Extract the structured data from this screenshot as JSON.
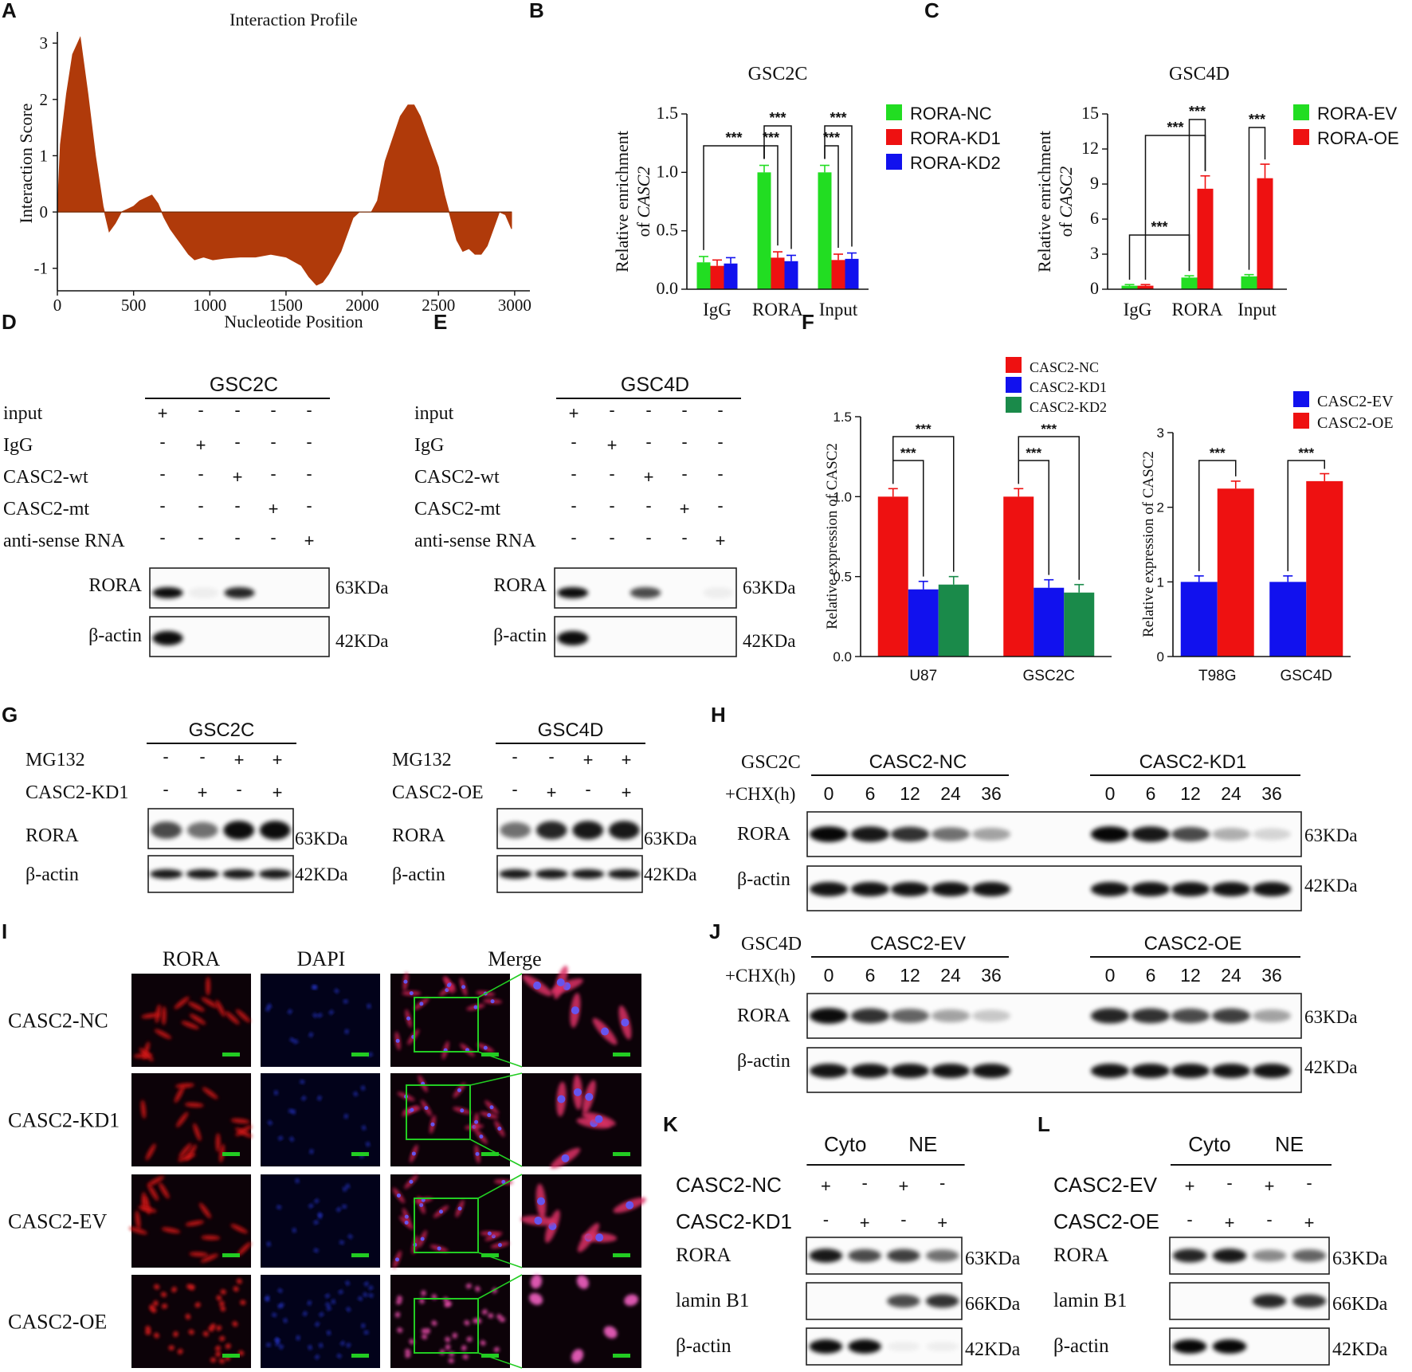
{
  "panel_letters": [
    "A",
    "B",
    "C",
    "D",
    "E",
    "F",
    "G",
    "H",
    "I",
    "J",
    "K",
    "L"
  ],
  "colors": {
    "profile_fill": "#b03a0a",
    "green": "#22dd22",
    "red": "#ee1111",
    "blue": "#1111ee",
    "darkgreen": "#1a8a4a",
    "roi_box": "#22cc22",
    "scale_bar": "#22cc22"
  },
  "panel_a": {
    "chart_data": {
      "type": "area",
      "title": "Interaction Profile",
      "xlabel": "Nucleotide Position",
      "ylabel": "Interaction Score",
      "xlim": [
        0,
        3100
      ],
      "ylim": [
        -1.4,
        3.2
      ],
      "xticks": [
        "0",
        "500",
        "1000",
        "1500",
        "2000",
        "2500",
        "3000"
      ],
      "yticks": [
        "-1",
        "0",
        "1",
        "2",
        "3"
      ],
      "x": [
        0,
        20,
        60,
        100,
        150,
        200,
        250,
        300,
        340,
        380,
        420,
        460,
        500,
        540,
        580,
        620,
        660,
        700,
        740,
        780,
        820,
        860,
        900,
        960,
        1020,
        1100,
        1200,
        1300,
        1400,
        1500,
        1600,
        1650,
        1700,
        1740,
        1780,
        1820,
        1860,
        1900,
        1940,
        1980,
        2020,
        2060,
        2100,
        2150,
        2200,
        2250,
        2300,
        2340,
        2380,
        2420,
        2460,
        2500,
        2540,
        2580,
        2620,
        2660,
        2700,
        2740,
        2780,
        2820,
        2860,
        2900,
        2940,
        2980
      ],
      "y": [
        0,
        1.2,
        2.1,
        2.8,
        3.1,
        2.1,
        1.0,
        0.1,
        -0.35,
        -0.2,
        0.0,
        0.05,
        0.1,
        0.2,
        0.25,
        0.3,
        0.15,
        -0.1,
        -0.3,
        -0.45,
        -0.6,
        -0.75,
        -0.85,
        -0.8,
        -0.85,
        -0.82,
        -0.8,
        -0.8,
        -0.75,
        -0.8,
        -0.95,
        -1.15,
        -1.3,
        -1.25,
        -1.1,
        -0.9,
        -0.7,
        -0.4,
        -0.1,
        0.0,
        0.0,
        0.0,
        0.2,
        0.9,
        1.3,
        1.7,
        1.9,
        1.9,
        1.7,
        1.4,
        1.1,
        0.8,
        0.3,
        -0.1,
        -0.5,
        -0.7,
        -0.65,
        -0.75,
        -0.75,
        -0.6,
        -0.3,
        0.0,
        -0.05,
        -0.3
      ]
    }
  },
  "panel_b": {
    "title": "GSC2C",
    "ylabel1": "Relative enrichment",
    "ylabel2": "of CASC2",
    "yticks": [
      "0.0",
      "0.5",
      "1.0",
      "1.5"
    ],
    "stars": "***",
    "chart_data": {
      "type": "bar",
      "title": "GSC2C",
      "categories": [
        "IgG",
        "RORA",
        "Input"
      ],
      "ylim": [
        0,
        1.5
      ],
      "series": [
        {
          "name": "RORA-NC",
          "color": "#22dd22",
          "values": [
            0.23,
            1.0,
            1.0
          ],
          "errors": [
            0.05,
            0.06,
            0.06
          ]
        },
        {
          "name": "RORA-KD1",
          "color": "#ee1111",
          "values": [
            0.2,
            0.27,
            0.25
          ],
          "errors": [
            0.05,
            0.05,
            0.05
          ]
        },
        {
          "name": "RORA-KD2",
          "color": "#1111ee",
          "values": [
            0.22,
            0.24,
            0.26
          ],
          "errors": [
            0.05,
            0.05,
            0.05
          ]
        }
      ]
    }
  },
  "panel_c": {
    "title": "GSC4D",
    "ylabel1": "Relative enrichment",
    "ylabel2": "of CASC2",
    "yticks": [
      "0",
      "3",
      "6",
      "9",
      "12",
      "15"
    ],
    "stars": "***",
    "chart_data": {
      "type": "bar",
      "title": "GSC4D",
      "categories": [
        "IgG",
        "RORA",
        "Input"
      ],
      "ylim": [
        0,
        15
      ],
      "series": [
        {
          "name": "RORA-EV",
          "color": "#22dd22",
          "values": [
            0.3,
            1.0,
            1.1
          ],
          "errors": [
            0.1,
            0.15,
            0.15
          ]
        },
        {
          "name": "RORA-OE",
          "color": "#ee1111",
          "values": [
            0.3,
            8.6,
            9.5
          ],
          "errors": [
            0.1,
            1.1,
            1.2
          ]
        }
      ]
    }
  },
  "panel_d": {
    "title": "GSC2C",
    "rows": [
      {
        "label": "input",
        "signs": [
          "+",
          "-",
          "-",
          "-",
          "-"
        ]
      },
      {
        "label": "IgG",
        "signs": [
          "-",
          "+",
          "-",
          "-",
          "-"
        ]
      },
      {
        "label": "CASC2-wt",
        "signs": [
          "-",
          "-",
          "+",
          "-",
          "-"
        ]
      },
      {
        "label": "CASC2-mt",
        "signs": [
          "-",
          "-",
          "-",
          "+",
          "-"
        ]
      },
      {
        "label": "anti-sense RNA",
        "signs": [
          "-",
          "-",
          "-",
          "-",
          "+"
        ]
      }
    ],
    "blots": [
      {
        "label": "RORA",
        "size": "63KDa"
      },
      {
        "label": "β-actin",
        "size": "42KDa"
      }
    ]
  },
  "panel_e": {
    "title": "GSC4D",
    "rows": [
      {
        "label": "input",
        "signs": [
          "+",
          "-",
          "-",
          "-",
          "-"
        ]
      },
      {
        "label": "IgG",
        "signs": [
          "-",
          "+",
          "-",
          "-",
          "-"
        ]
      },
      {
        "label": "CASC2-wt",
        "signs": [
          "-",
          "-",
          "+",
          "-",
          "-"
        ]
      },
      {
        "label": "CASC2-mt",
        "signs": [
          "-",
          "-",
          "-",
          "+",
          "-"
        ]
      },
      {
        "label": "anti-sense RNA",
        "signs": [
          "-",
          "-",
          "-",
          "-",
          "+"
        ]
      }
    ],
    "blots": [
      {
        "label": "RORA",
        "size": "63KDa"
      },
      {
        "label": "β-actin",
        "size": "42KDa"
      }
    ]
  },
  "panel_f1": {
    "ylabel": "Relative  expression of CASC2",
    "yticks": [
      "0.0",
      "0.5",
      "1.0",
      "1.5"
    ],
    "stars": "***",
    "chart_data": {
      "type": "bar",
      "categories": [
        "U87",
        "GSC2C"
      ],
      "ylim": [
        0,
        1.5
      ],
      "series": [
        {
          "name": "CASC2-NC",
          "color": "#ee1111",
          "values": [
            1.0,
            1.0
          ],
          "errors": [
            0.05,
            0.05
          ]
        },
        {
          "name": "CASC2-KD1",
          "color": "#1111ee",
          "values": [
            0.42,
            0.43
          ],
          "errors": [
            0.05,
            0.05
          ]
        },
        {
          "name": "CASC2-KD2",
          "color": "#1a8a4a",
          "values": [
            0.45,
            0.4
          ],
          "errors": [
            0.05,
            0.05
          ]
        }
      ]
    }
  },
  "panel_f2": {
    "ylabel": "Relative  expression of CASC2",
    "yticks": [
      "0",
      "1",
      "2",
      "3"
    ],
    "stars": "***",
    "chart_data": {
      "type": "bar",
      "categories": [
        "T98G",
        "GSC4D"
      ],
      "ylim": [
        0,
        3
      ],
      "series": [
        {
          "name": "CASC2-EV",
          "color": "#1111ee",
          "values": [
            1.0,
            1.0
          ],
          "errors": [
            0.08,
            0.08
          ]
        },
        {
          "name": "CASC2-OE",
          "color": "#ee1111",
          "values": [
            2.25,
            2.35
          ],
          "errors": [
            0.1,
            0.1
          ]
        }
      ]
    }
  },
  "panel_g": {
    "left": {
      "title": "GSC2C",
      "rows": [
        {
          "label": "MG132",
          "signs": [
            "-",
            "-",
            "+",
            "+"
          ]
        },
        {
          "label": "CASC2-KD1",
          "signs": [
            "-",
            "+",
            "-",
            "+"
          ]
        }
      ],
      "blots": [
        {
          "label": "RORA",
          "size": "63KDa"
        },
        {
          "label": "β-actin",
          "size": "42KDa"
        }
      ]
    },
    "right": {
      "title": "GSC4D",
      "rows": [
        {
          "label": "MG132",
          "signs": [
            "-",
            "-",
            "+",
            "+"
          ]
        },
        {
          "label": "CASC2-OE",
          "signs": [
            "-",
            "+",
            "-",
            "+"
          ]
        }
      ],
      "blots": [
        {
          "label": "RORA",
          "size": "63KDa"
        },
        {
          "label": "β-actin",
          "size": "42KDa"
        }
      ]
    }
  },
  "panel_h": {
    "cell": "GSC2C",
    "chx": "+CHX(h)",
    "group1": "CASC2-NC",
    "group2": "CASC2-KD1",
    "times": [
      "0",
      "6",
      "12",
      "24",
      "36"
    ],
    "blots": [
      {
        "label": "RORA",
        "size": "63KDa"
      },
      {
        "label": "β-actin",
        "size": "42KDa"
      }
    ]
  },
  "panel_j": {
    "cell": "GSC4D",
    "chx": "+CHX(h)",
    "group1": "CASC2-EV",
    "group2": "CASC2-OE",
    "times": [
      "0",
      "6",
      "12",
      "24",
      "36"
    ],
    "blots": [
      {
        "label": "RORA",
        "size": "63KDa"
      },
      {
        "label": "β-actin",
        "size": "42KDa"
      }
    ]
  },
  "panel_i": {
    "columns": [
      "RORA",
      "DAPI",
      "Merge"
    ],
    "rows": [
      "CASC2-NC",
      "CASC2-KD1",
      "CASC2-EV",
      "CASC2-OE"
    ]
  },
  "panel_k": {
    "groups": [
      "Cyto",
      "NE"
    ],
    "rows": [
      {
        "label": "CASC2-NC",
        "signs": [
          "+",
          "-",
          "+",
          "-"
        ]
      },
      {
        "label": "CASC2-KD1",
        "signs": [
          "-",
          "+",
          "-",
          "+"
        ]
      }
    ],
    "blots": [
      {
        "label": "RORA",
        "size": "63KDa"
      },
      {
        "label": "lamin B1",
        "size": "66KDa"
      },
      {
        "label": "β-actin",
        "size": "42KDa"
      }
    ]
  },
  "panel_l": {
    "groups": [
      "Cyto",
      "NE"
    ],
    "rows": [
      {
        "label": "CASC2-EV",
        "signs": [
          "+",
          "-",
          "+",
          "-"
        ]
      },
      {
        "label": "CASC2-OE",
        "signs": [
          "-",
          "+",
          "-",
          "+"
        ]
      }
    ],
    "blots": [
      {
        "label": "RORA",
        "size": "63KDa"
      },
      {
        "label": "lamin B1",
        "size": "66KDa"
      },
      {
        "label": "β-actin",
        "size": "42KDa"
      }
    ]
  }
}
